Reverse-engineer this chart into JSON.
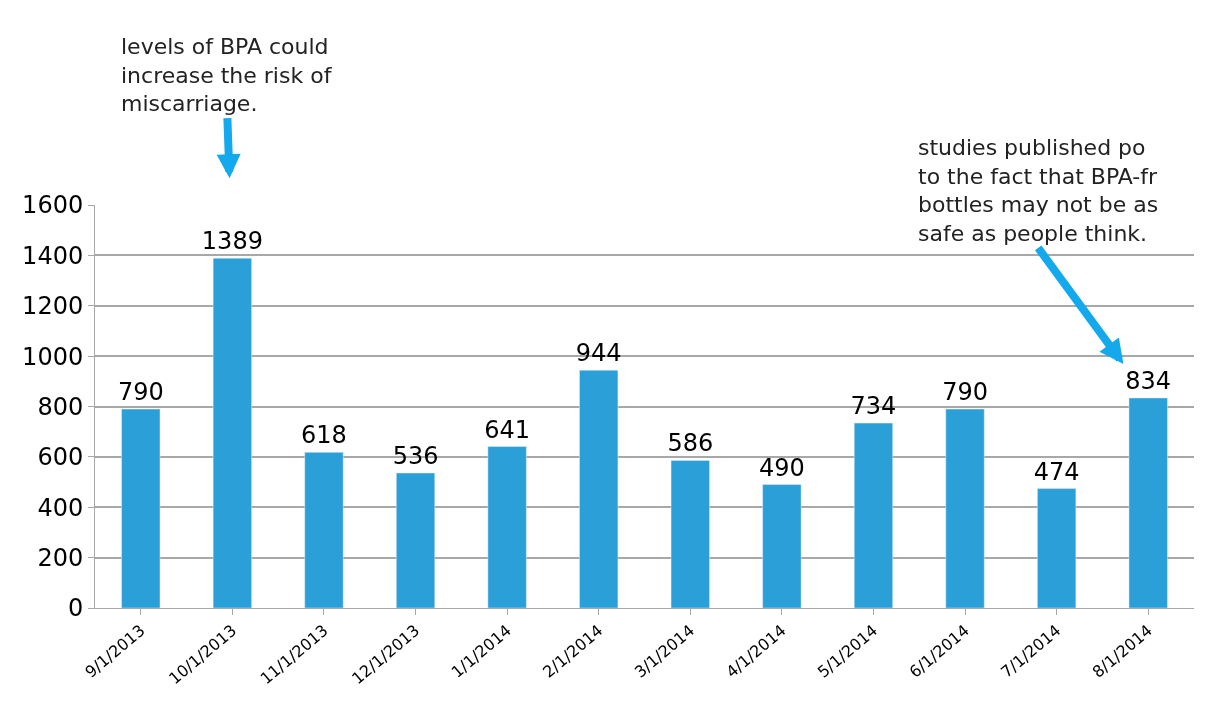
{
  "chart_data": {
    "type": "bar",
    "categories": [
      "9/1/2013",
      "10/1/2013",
      "11/1/2013",
      "12/1/2013",
      "1/1/2014",
      "2/1/2014",
      "3/1/2014",
      "4/1/2014",
      "5/1/2014",
      "6/1/2014",
      "7/1/2014",
      "8/1/2014"
    ],
    "values": [
      790,
      1389,
      618,
      536,
      641,
      944,
      586,
      490,
      734,
      790,
      474,
      834
    ],
    "color": "#2a9fd8",
    "ylim": [
      0,
      1600
    ],
    "yticks": [
      0,
      200,
      400,
      600,
      800,
      1000,
      1200,
      1400,
      1600
    ],
    "grid": "y",
    "data_labels": true,
    "legend": false,
    "annotations": [
      {
        "text": "levels of BPA could\nincrease the risk of\nmiscarriage.",
        "x": "10/1/2013",
        "y": 1389
      },
      {
        "text": "studies published po\nto the fact that BPA-fr\nbottles may not be as\nsafe as people think.",
        "x": "8/1/2014",
        "y": 834
      }
    ]
  }
}
